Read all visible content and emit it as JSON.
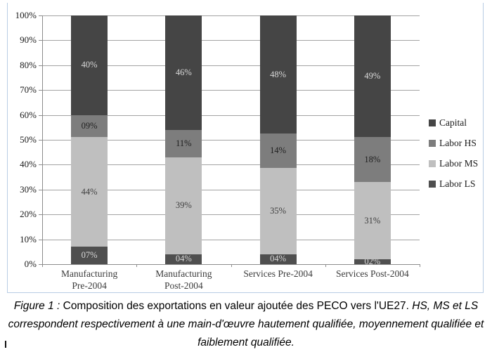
{
  "chart_data": {
    "type": "bar",
    "subtype": "stacked-100-percent",
    "categories": [
      "Manufacturing\nPre-2004",
      "Manufacturing\nPost-2004",
      "Services Pre-2004",
      "Services Post-2004"
    ],
    "series": [
      {
        "name": "Labor LS",
        "color": "#4f4f4f",
        "values": [
          7,
          4,
          4,
          2
        ],
        "labels": [
          "07%",
          "04%",
          "04%",
          "02%"
        ],
        "label_color": "#d9d9d9"
      },
      {
        "name": "Labor MS",
        "color": "#bfbfbf",
        "values": [
          44,
          39,
          35,
          31
        ],
        "labels": [
          "44%",
          "39%",
          "35%",
          "31%"
        ],
        "label_color": "#3f3f3f"
      },
      {
        "name": "Labor HS",
        "color": "#7d7d7d",
        "values": [
          9,
          11,
          14,
          18
        ],
        "labels": [
          "09%",
          "11%",
          "14%",
          "18%"
        ],
        "label_color": "#1f1f1f"
      },
      {
        "name": "Capital",
        "color": "#454545",
        "values": [
          40,
          46,
          48,
          49
        ],
        "labels": [
          "40%",
          "46%",
          "48%",
          "49%"
        ],
        "label_color": "#d9d9d9"
      }
    ],
    "y_ticks": [
      "100%",
      "90%",
      "80%",
      "70%",
      "60%",
      "50%",
      "40%",
      "30%",
      "20%",
      "10%",
      "0%"
    ],
    "ylim": [
      0,
      100
    ],
    "grid": true,
    "legend": {
      "position": "right",
      "order_top_to_bottom": [
        "Capital",
        "Labor HS",
        "Labor MS",
        "Labor LS"
      ]
    }
  },
  "caption": {
    "prefix": "Figure 1 :",
    "regular": " Composition des exportations en valeur ajoutée des PECO vers l'UE27. ",
    "italic": "HS, MS et LS correspondent respectivement à une main-d'œuvre hautement qualifiée, moyennement qualifiée et faiblement qualifiée."
  },
  "colors": {
    "frame_border": "#b8cce4",
    "gridline": "#a3a3a3",
    "axis": "#8c8c8c"
  }
}
